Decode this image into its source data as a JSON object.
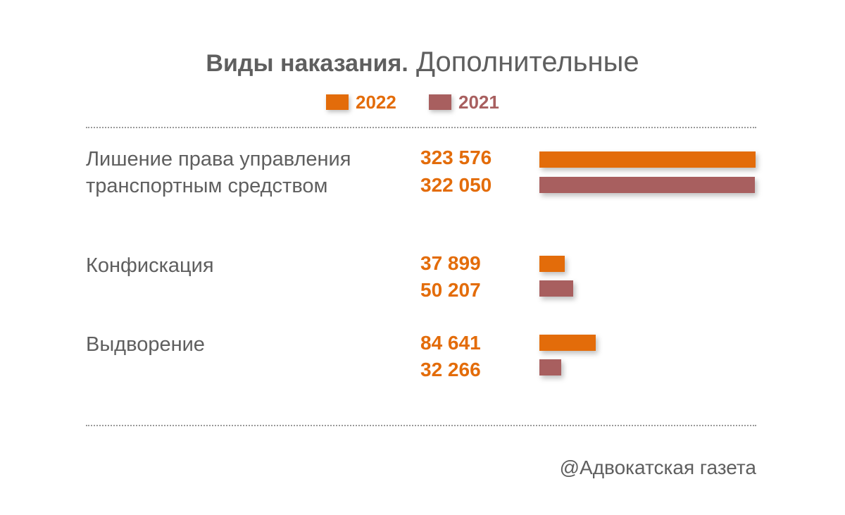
{
  "title": {
    "bold": "Виды наказания.",
    "light": "Дополнительные"
  },
  "legend": [
    {
      "label": "2022",
      "color": "#e36c0a"
    },
    {
      "label": "2021",
      "color": "#a85f5f"
    }
  ],
  "chart_data": {
    "type": "bar",
    "orientation": "horizontal",
    "title": "Виды наказания. Дополнительные",
    "categories": [
      "Лишение права управления транспортным средством",
      "Конфискация",
      "Выдворение"
    ],
    "series": [
      {
        "name": "2022",
        "color": "#e36c0a",
        "values": [
          323576,
          37899,
          84641
        ],
        "labels": [
          "323 576",
          "37 899",
          "84 641"
        ]
      },
      {
        "name": "2021",
        "color": "#a85f5f",
        "values": [
          322050,
          50207,
          32266
        ],
        "labels": [
          "322 050",
          "50 207",
          "32 266"
        ]
      }
    ],
    "xlim": [
      0,
      390000
    ],
    "grid": false,
    "legend_position": "top"
  },
  "source": "@Адвокатская газета"
}
